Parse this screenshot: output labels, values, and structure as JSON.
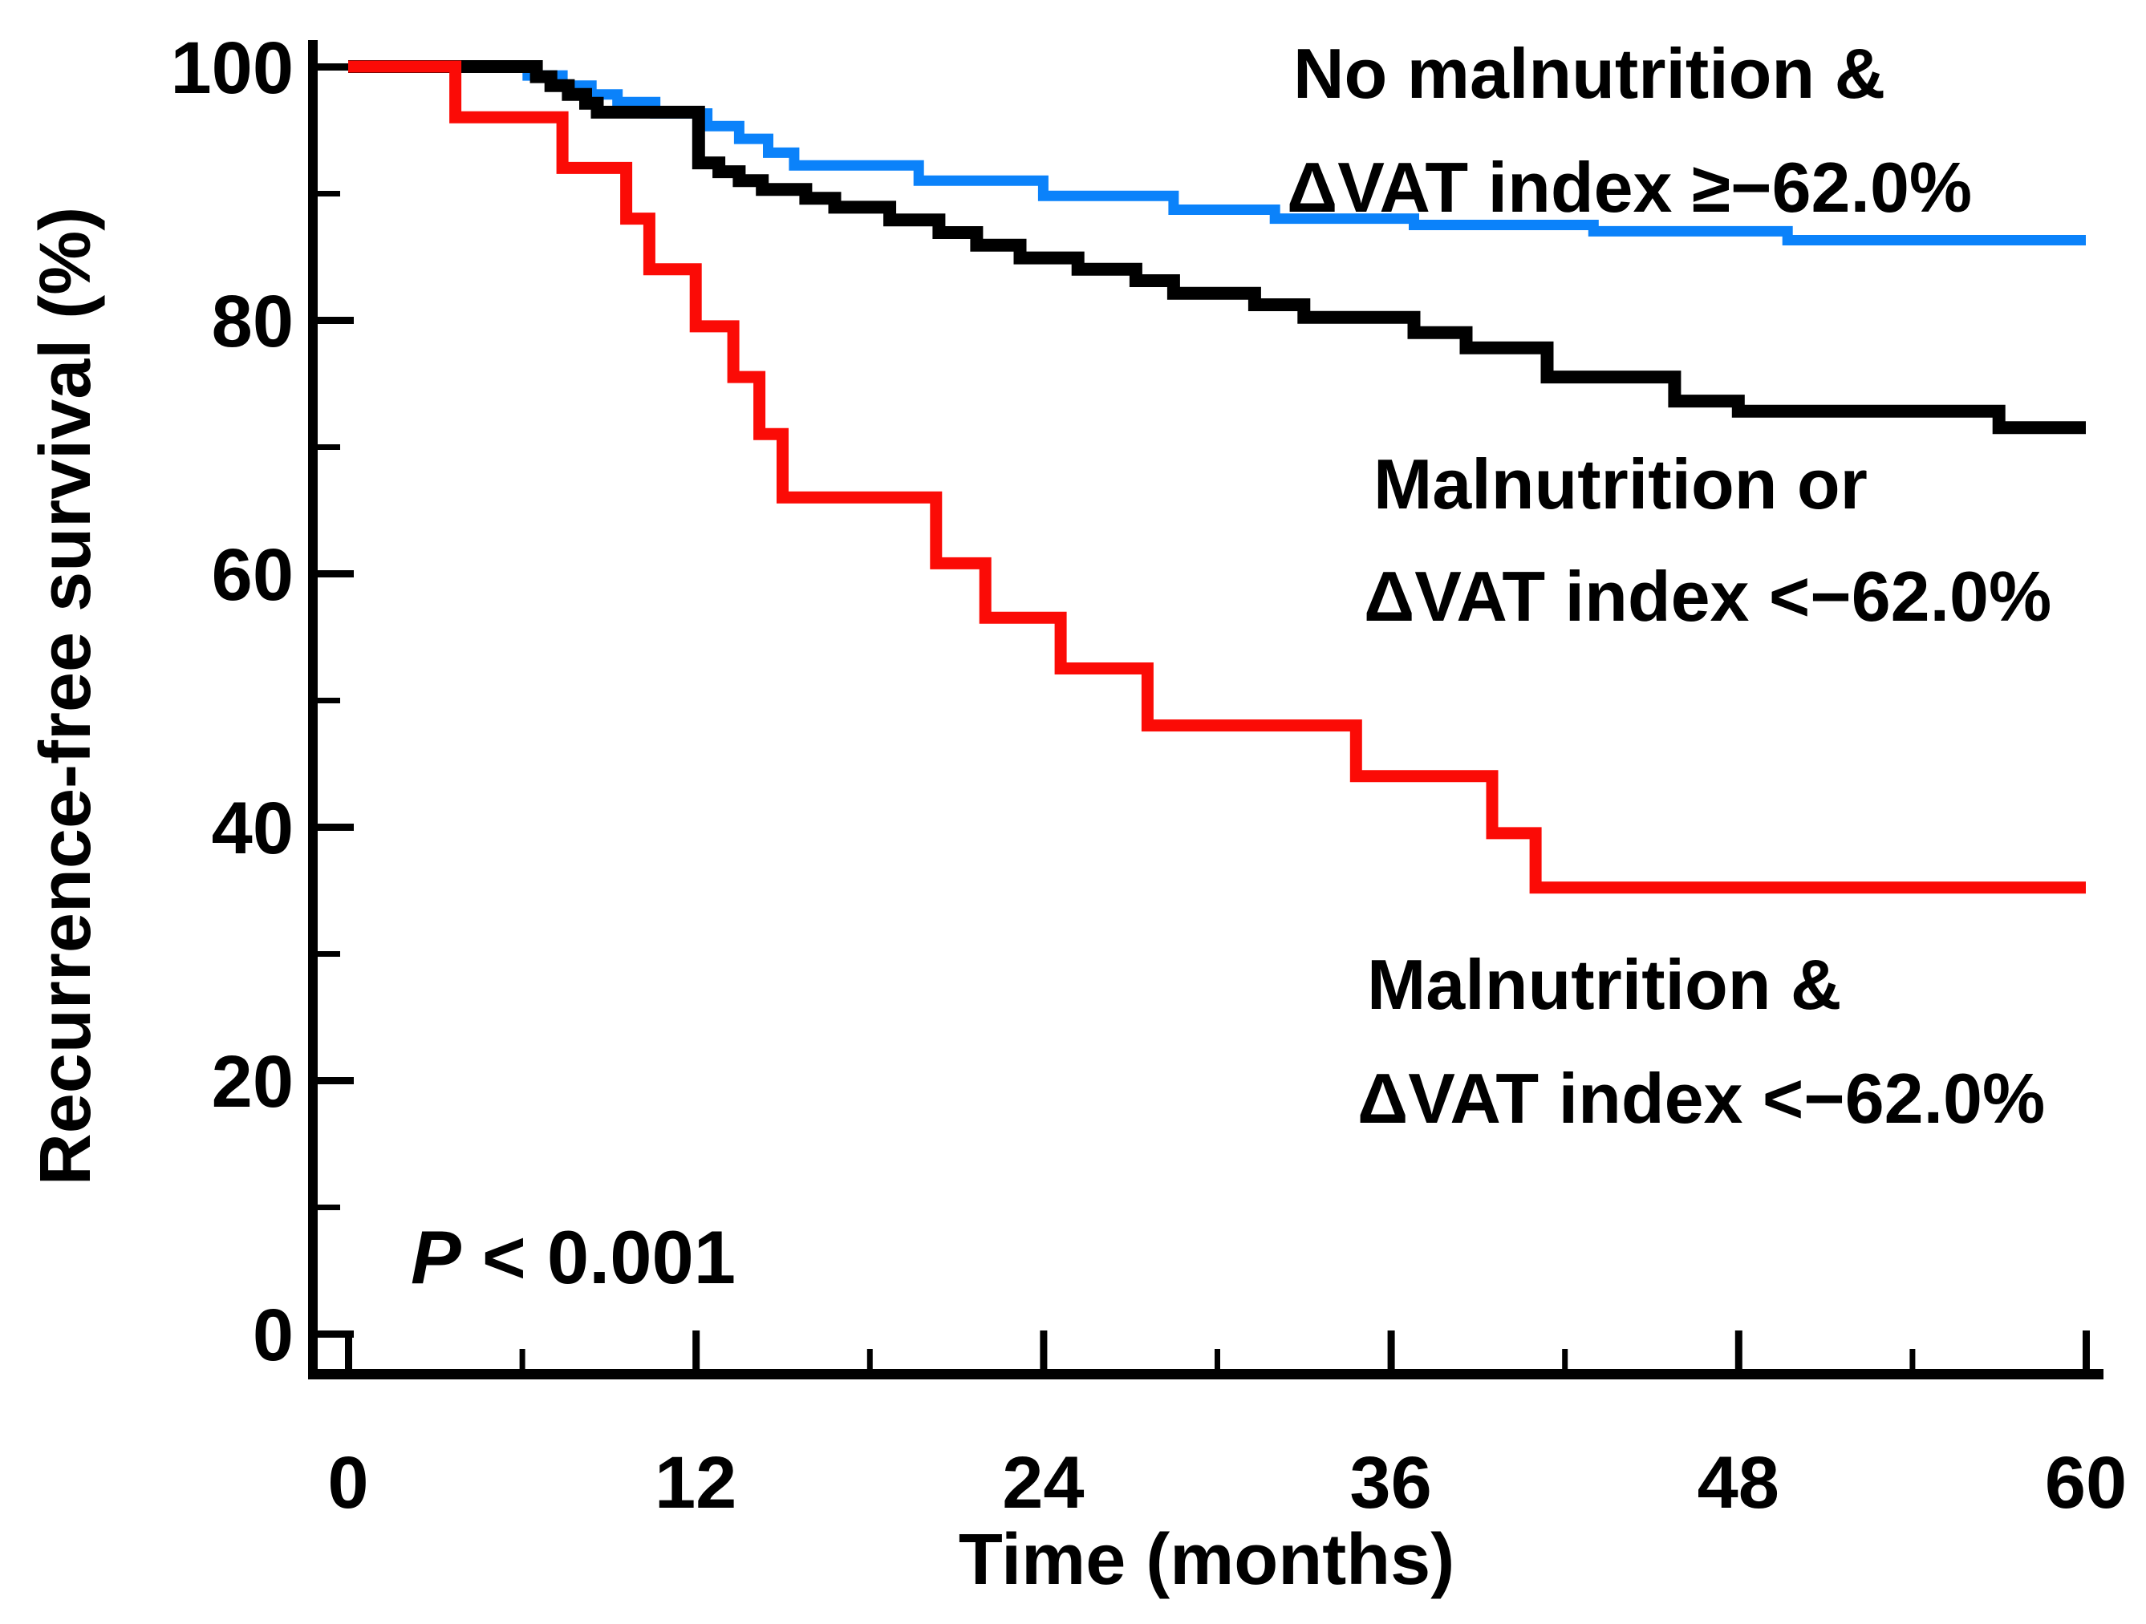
{
  "chart_data": {
    "type": "line",
    "subtype": "kaplan-meier-step",
    "title": "",
    "xlabel": "Time (months)",
    "ylabel": "Recurrence-free survival (%)",
    "xlim": [
      0,
      60
    ],
    "ylim": [
      0,
      100
    ],
    "grid": false,
    "x_ticks_major": [
      0,
      12,
      24,
      36,
      48,
      60
    ],
    "x_ticks_minor": [
      6,
      18,
      30,
      42,
      54
    ],
    "x_tick_labels": [
      "0",
      "12",
      "24",
      "36",
      "48",
      "60"
    ],
    "y_ticks_major": [
      0,
      20,
      40,
      60,
      80,
      100
    ],
    "y_ticks_minor": [
      10,
      30,
      50,
      70,
      90
    ],
    "y_tick_labels": [
      "0",
      "20",
      "40",
      "60",
      "80",
      "100"
    ],
    "annotation": {
      "text": "P < 0.001",
      "label_symbol": "P",
      "label_rest": " < 0.001"
    },
    "axis_color": "#000000",
    "series": [
      {
        "name": "No malnutrition & ΔVAT index ≥−62.0%",
        "legend_lines": [
          "No malnutrition &",
          "ΔVAT index ≥−62.0%"
        ],
        "color": "#0b82fa",
        "stroke_width": 13,
        "end_time": 60,
        "steps": [
          [
            0,
            100
          ],
          [
            6.2,
            99.3
          ],
          [
            7.4,
            98.5
          ],
          [
            8.4,
            97.8
          ],
          [
            9.3,
            97.2
          ],
          [
            10.6,
            96.3
          ],
          [
            12.4,
            95.3
          ],
          [
            13.5,
            94.3
          ],
          [
            14.5,
            93.2
          ],
          [
            15.4,
            92.2
          ],
          [
            19.7,
            91.0
          ],
          [
            24.0,
            89.8
          ],
          [
            28.5,
            88.7
          ],
          [
            32.0,
            88.0
          ],
          [
            36.8,
            87.5
          ],
          [
            43.0,
            87.0
          ],
          [
            49.7,
            86.3
          ]
        ]
      },
      {
        "name": "Malnutrition or ΔVAT index <−62.0%",
        "legend_lines": [
          "Malnutrition  or",
          "ΔVAT index <−62.0%"
        ],
        "color": "#000000",
        "stroke_width": 16,
        "end_time": 60,
        "steps": [
          [
            0,
            100
          ],
          [
            6.5,
            99.2
          ],
          [
            7.0,
            98.5
          ],
          [
            7.6,
            97.8
          ],
          [
            8.2,
            97.1
          ],
          [
            8.6,
            96.4
          ],
          [
            12.1,
            92.4
          ],
          [
            12.8,
            91.7
          ],
          [
            13.5,
            91.0
          ],
          [
            14.3,
            90.3
          ],
          [
            15.8,
            89.6
          ],
          [
            16.8,
            88.9
          ],
          [
            18.7,
            87.9
          ],
          [
            20.4,
            86.9
          ],
          [
            21.7,
            85.9
          ],
          [
            23.2,
            84.9
          ],
          [
            25.2,
            84.0
          ],
          [
            27.2,
            83.1
          ],
          [
            28.5,
            82.1
          ],
          [
            31.3,
            81.2
          ],
          [
            33.0,
            80.2
          ],
          [
            36.8,
            79.0
          ],
          [
            38.6,
            77.8
          ],
          [
            41.4,
            75.5
          ],
          [
            45.8,
            73.6
          ],
          [
            48.0,
            72.8
          ],
          [
            57.0,
            71.5
          ]
        ]
      },
      {
        "name": "Malnutrition & ΔVAT index <−62.0%",
        "legend_lines": [
          "Malnutrition  &",
          "ΔVAT index <−62.0%"
        ],
        "color": "#fb0b06",
        "stroke_width": 15,
        "end_time": 60,
        "steps": [
          [
            0,
            100
          ],
          [
            3.7,
            96
          ],
          [
            7.4,
            92
          ],
          [
            9.6,
            88
          ],
          [
            10.4,
            84
          ],
          [
            12.0,
            79.5
          ],
          [
            13.3,
            75.5
          ],
          [
            14.2,
            71
          ],
          [
            15.0,
            66
          ],
          [
            20.3,
            60.8
          ],
          [
            22.0,
            56.5
          ],
          [
            24.6,
            52.5
          ],
          [
            27.6,
            48
          ],
          [
            34.8,
            44
          ],
          [
            39.5,
            39.5
          ],
          [
            41.0,
            35.2
          ]
        ]
      }
    ]
  }
}
